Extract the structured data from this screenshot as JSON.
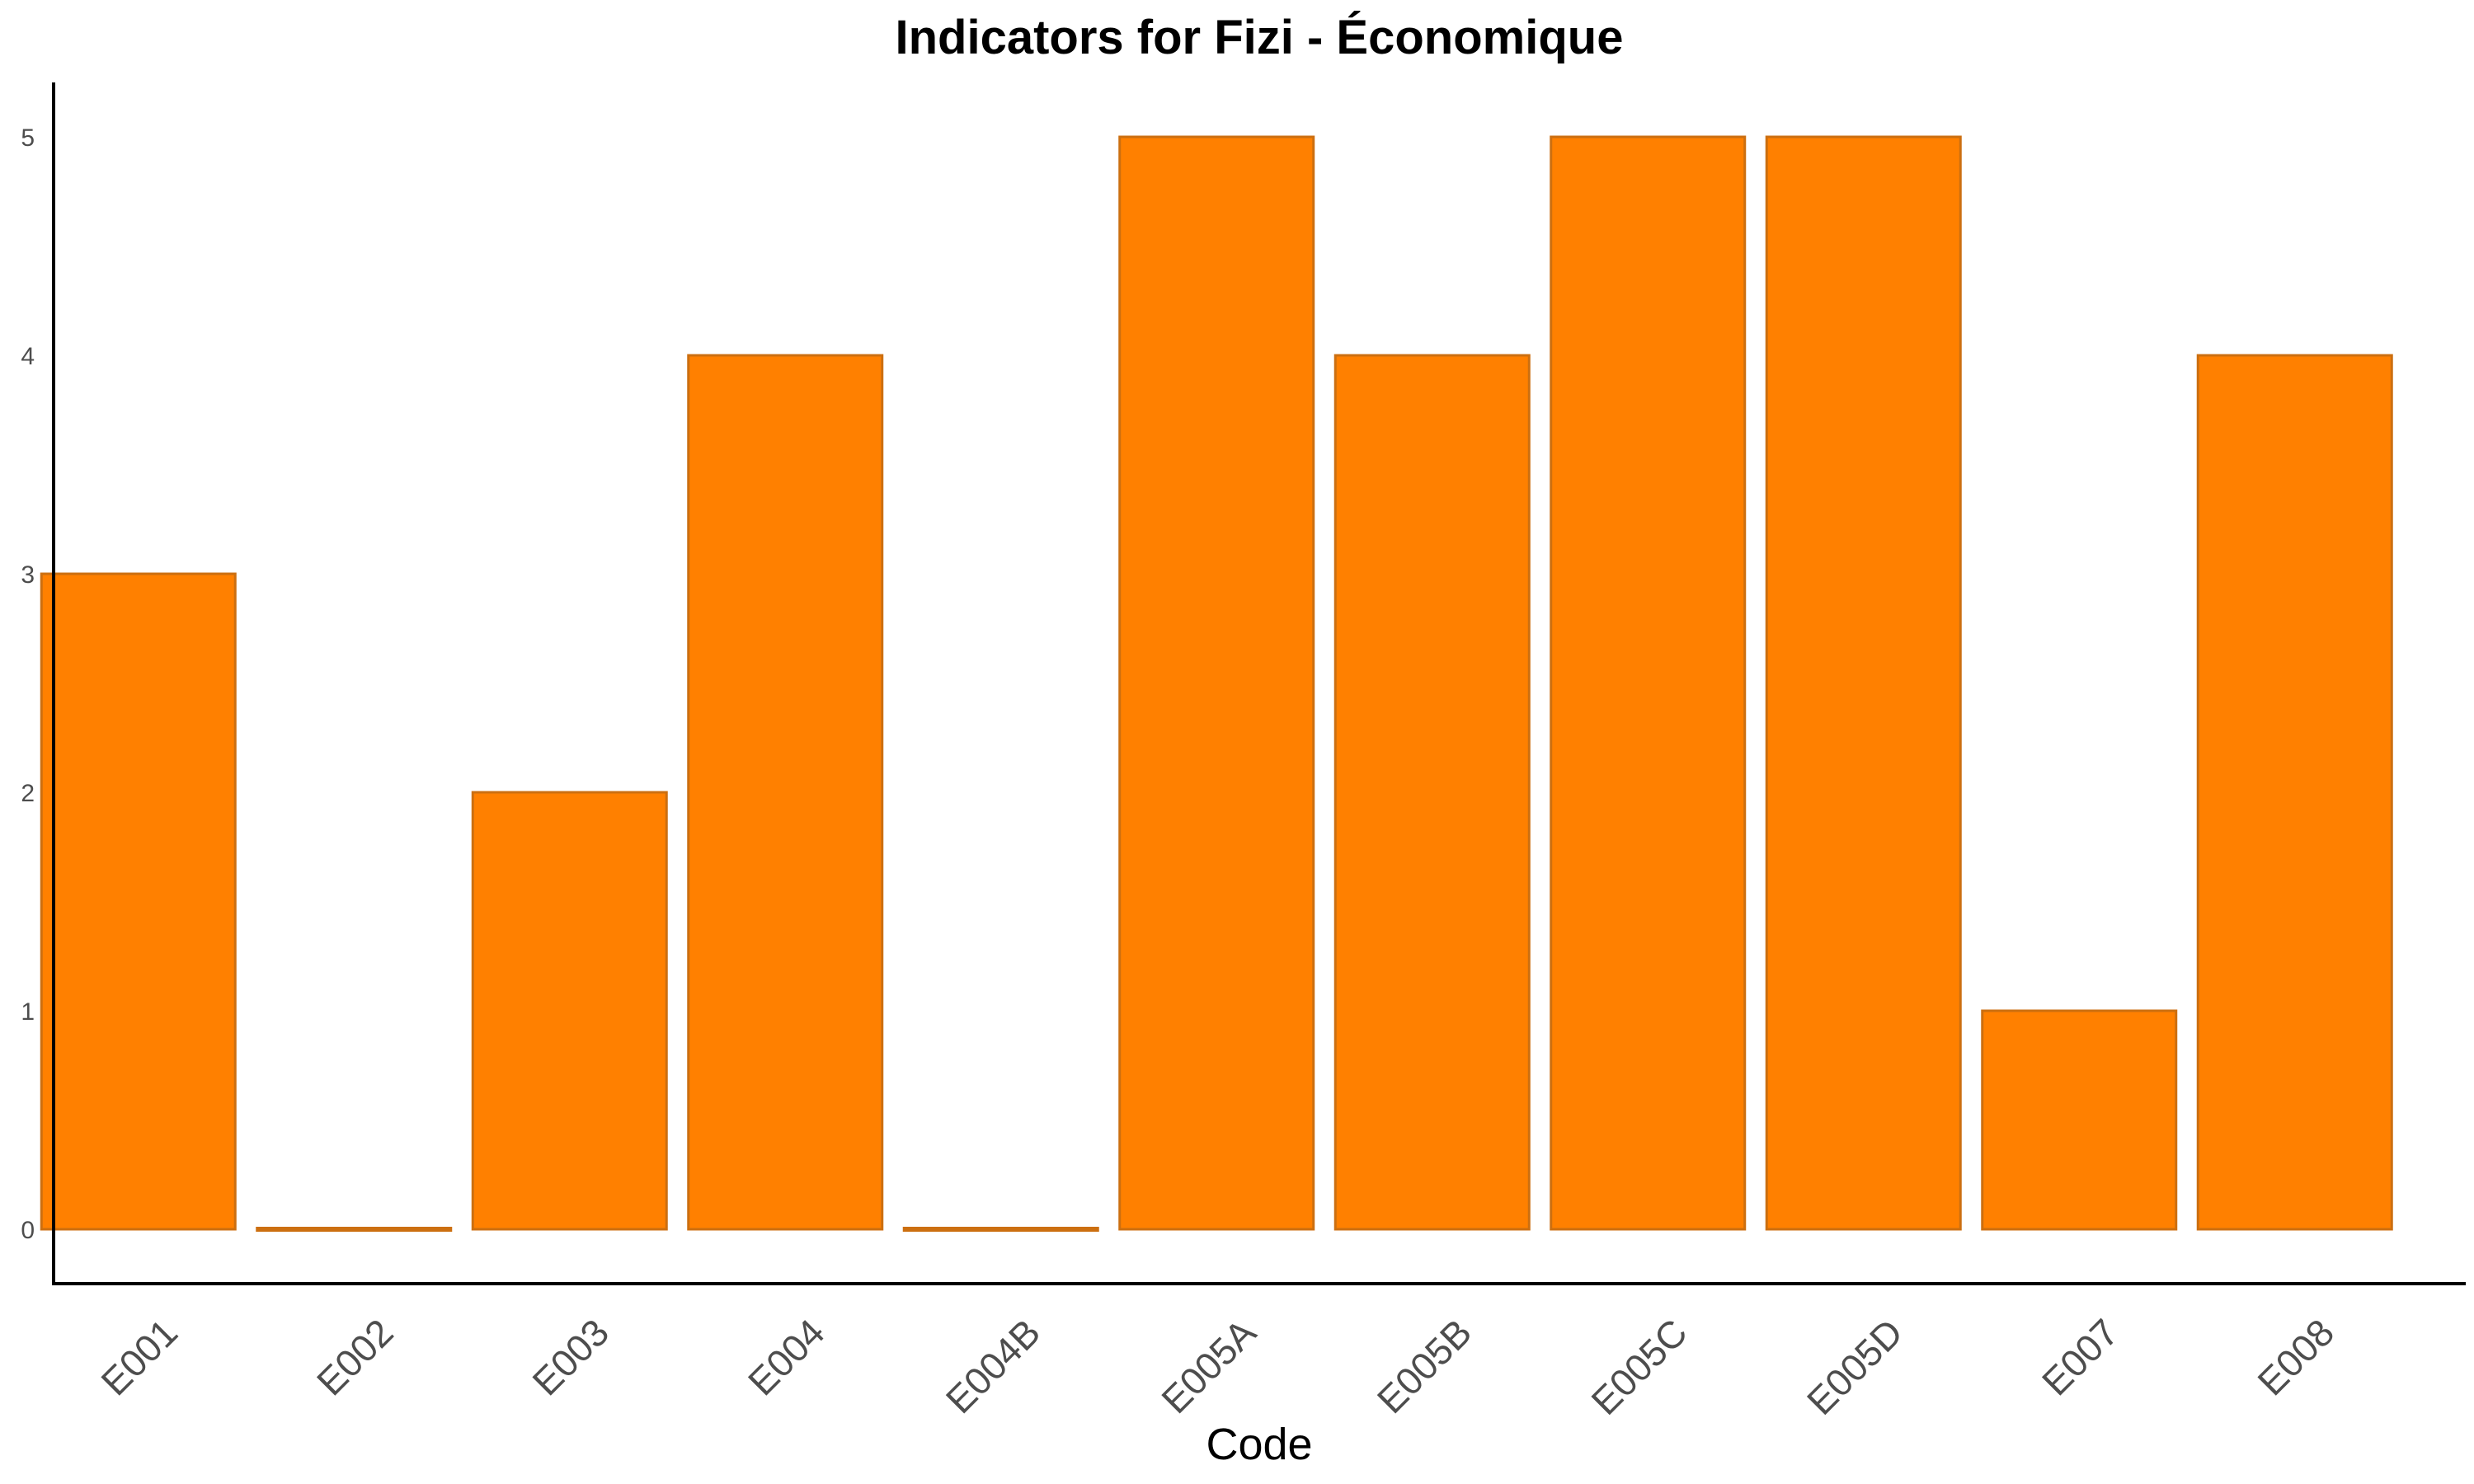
{
  "chart_data": {
    "type": "bar",
    "title": "Indicators for Fizi - Économique",
    "xlabel": "Code",
    "ylabel": "",
    "categories": [
      "E001",
      "E002",
      "E003",
      "E004",
      "E004B",
      "E005A",
      "E005B",
      "E005C",
      "E005D",
      "E007",
      "E008"
    ],
    "values": [
      3,
      0,
      2,
      4,
      0,
      5,
      4,
      5,
      5,
      1,
      4
    ],
    "ylim": [
      0,
      5.25
    ],
    "yticks": [
      0,
      1,
      2,
      3,
      4,
      5
    ],
    "grid": false,
    "legend": "none",
    "bar_color": "#FF8000",
    "bar_border_color": "#CC6F10",
    "axis_color": "#000000",
    "tick_label_color": "#4D4D4D"
  }
}
